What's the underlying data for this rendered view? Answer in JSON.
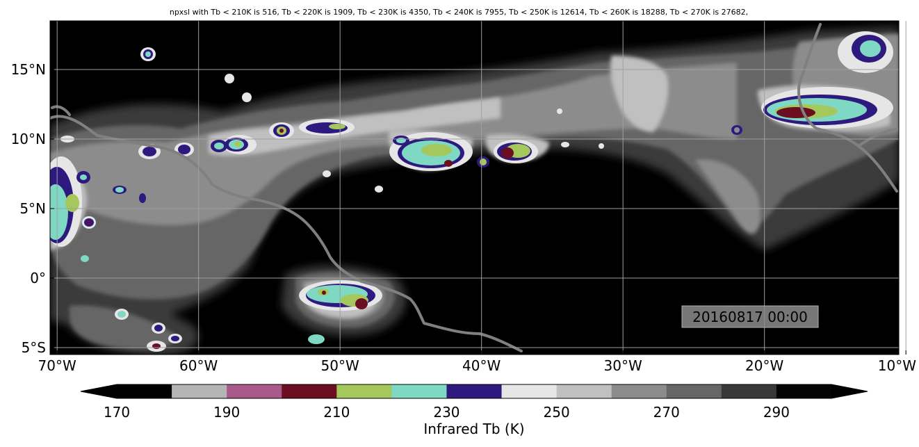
{
  "title": "npxsl with Tb < 210K is 516,  Tb < 220K is 1909,  Tb < 230K is 4350,  Tb < 240K is 7955,  Tb < 250K is 12614,  Tb < 260K is 18288,  Tb < 270K is 27682,",
  "timestamp": "20160817 00:00",
  "map": {
    "lon_range": [
      -70.5,
      -10.5
    ],
    "lat_range": [
      -5.5,
      18.5
    ],
    "lat_ticks": [
      {
        "value": 15,
        "label": "15°N"
      },
      {
        "value": 10,
        "label": "10°N"
      },
      {
        "value": 5,
        "label": "5°N"
      },
      {
        "value": 0,
        "label": "0°"
      },
      {
        "value": -5,
        "label": "5°S"
      }
    ],
    "lon_ticks": [
      {
        "value": -70,
        "label": "70°W"
      },
      {
        "value": -60,
        "label": "60°W"
      },
      {
        "value": -50,
        "label": "50°W"
      },
      {
        "value": -40,
        "label": "40°W"
      },
      {
        "value": -30,
        "label": "30°W"
      },
      {
        "value": -20,
        "label": "20°W"
      },
      {
        "value": -10,
        "label": "10°W"
      }
    ],
    "background_color": "#000000",
    "coastline_color": "#808080",
    "grid": true
  },
  "colorbar": {
    "label": "Infrared Tb (K)",
    "tick_labels": [
      {
        "value": 170,
        "label": "170"
      },
      {
        "value": 190,
        "label": "190"
      },
      {
        "value": 210,
        "label": "210"
      },
      {
        "value": 230,
        "label": "230"
      },
      {
        "value": 250,
        "label": "250"
      },
      {
        "value": 270,
        "label": "270"
      },
      {
        "value": 290,
        "label": "290"
      }
    ],
    "range": [
      170,
      300
    ],
    "bins": [
      {
        "from": 170,
        "to": 180,
        "color": "#000000"
      },
      {
        "from": 180,
        "to": 190,
        "color": "#b5b5b5"
      },
      {
        "from": 190,
        "to": 200,
        "color": "#a85a8a"
      },
      {
        "from": 200,
        "to": 210,
        "color": "#6b0e22"
      },
      {
        "from": 210,
        "to": 220,
        "color": "#a5c85c"
      },
      {
        "from": 220,
        "to": 230,
        "color": "#7ed8c4"
      },
      {
        "from": 230,
        "to": 240,
        "color": "#2e1a7e"
      },
      {
        "from": 240,
        "to": 250,
        "color": "#e6e6e6"
      },
      {
        "from": 250,
        "to": 260,
        "color": "#c0c0c0"
      },
      {
        "from": 260,
        "to": 270,
        "color": "#8c8c8c"
      },
      {
        "from": 270,
        "to": 280,
        "color": "#666666"
      },
      {
        "from": 280,
        "to": 290,
        "color": "#383838"
      },
      {
        "from": 290,
        "to": 300,
        "color": "#050505"
      }
    ],
    "under_color": "#000000",
    "over_color": "#000000"
  }
}
